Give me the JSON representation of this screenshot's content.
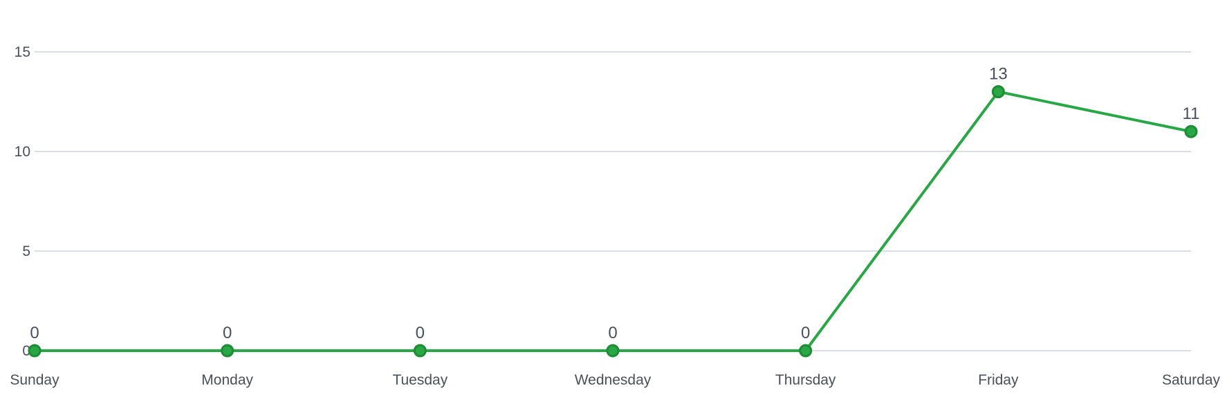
{
  "chart_data": {
    "type": "line",
    "categories": [
      "Sunday",
      "Monday",
      "Tuesday",
      "Wednesday",
      "Thursday",
      "Friday",
      "Saturday"
    ],
    "series": [
      {
        "values": [
          0,
          0,
          0,
          0,
          0,
          13,
          11
        ],
        "color": "#28a745",
        "marker_color": "#1e8b35"
      }
    ],
    "ylim": [
      0,
      15
    ],
    "yticks": [
      0,
      5,
      10,
      15
    ],
    "ytick_labels": [
      "0",
      "5",
      "10",
      "15"
    ],
    "data_labels": [
      "0",
      "0",
      "0",
      "0",
      "0",
      "13",
      "11"
    ],
    "grid": true,
    "legend": "none"
  }
}
